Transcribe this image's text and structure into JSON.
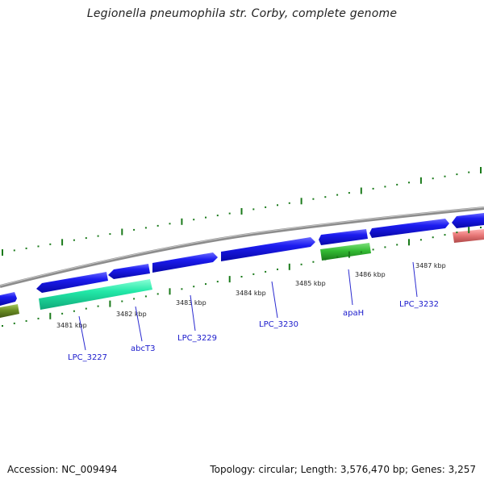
{
  "title": "Legionella pneumophila str. Corby, complete genome",
  "footer": {
    "accession": "Accession: NC_009494",
    "summary": "Topology: circular; Length: 3,576,470 bp; Genes: 3,257"
  },
  "position_labels": [
    "3481 kbp",
    "3482 kbp",
    "3483 kbp",
    "3484 kbp",
    "3485 kbp",
    "3486 kbp",
    "3487 kbp"
  ],
  "gene_labels": [
    "LPC_3227",
    "abcT3",
    "LPC_3229",
    "LPC_3230",
    "apaH",
    "LPC_3232"
  ],
  "colors": {
    "forward_gene": "#1010e0",
    "reverse_gene": "#1010e0",
    "feature_cyan": "#22e8a8",
    "feature_green": "#33bb33",
    "feature_olive": "#6b8e23",
    "feature_pink": "#e87878",
    "backbone": "#888888",
    "tick": "#1a7a1a",
    "label": "#1a1acc"
  }
}
